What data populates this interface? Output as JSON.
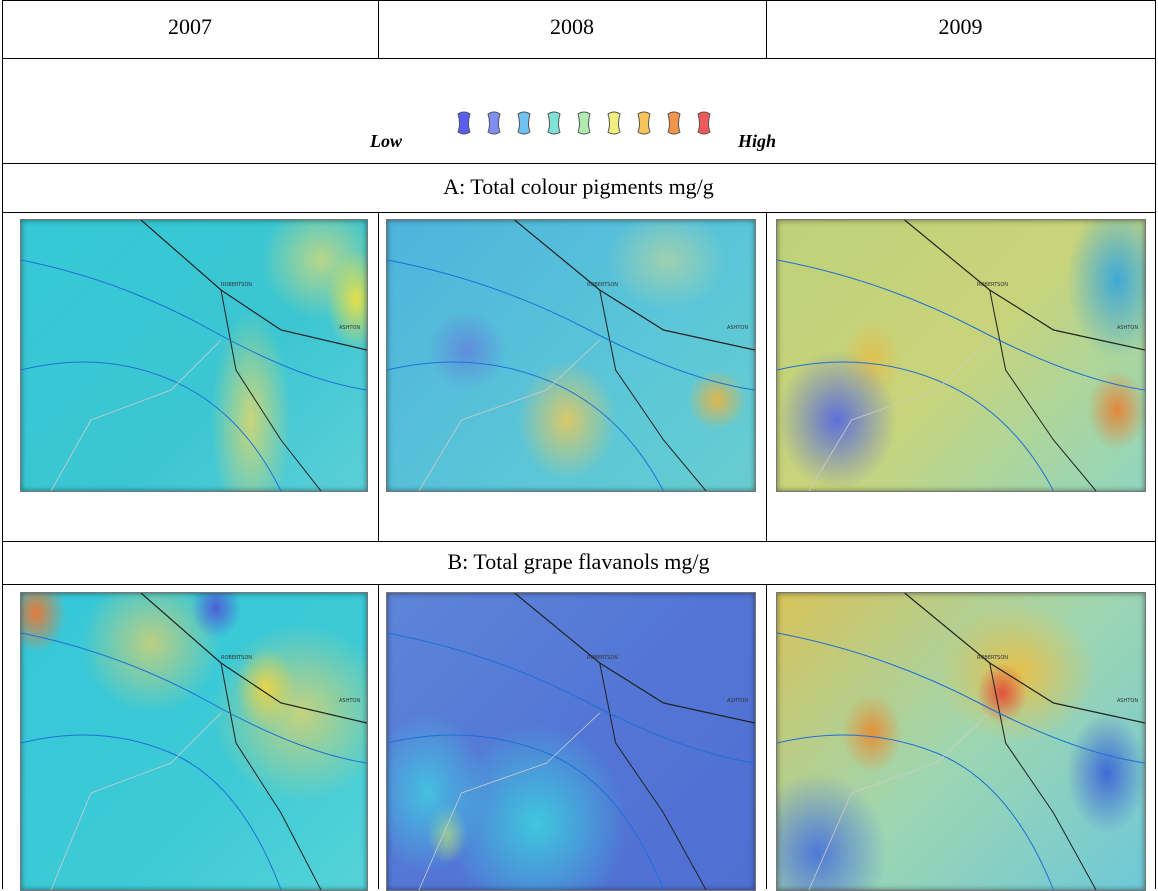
{
  "header": {
    "columns": [
      "2007",
      "2008",
      "2009"
    ]
  },
  "legend": {
    "low": "Low",
    "high": "High"
  },
  "sections": [
    {
      "title": "A: Total colour pigments mg/g"
    },
    {
      "title": "B: Total grape flavanols mg/g"
    }
  ],
  "map_labels": [
    "ROBERTSON",
    "ASHTON"
  ]
}
